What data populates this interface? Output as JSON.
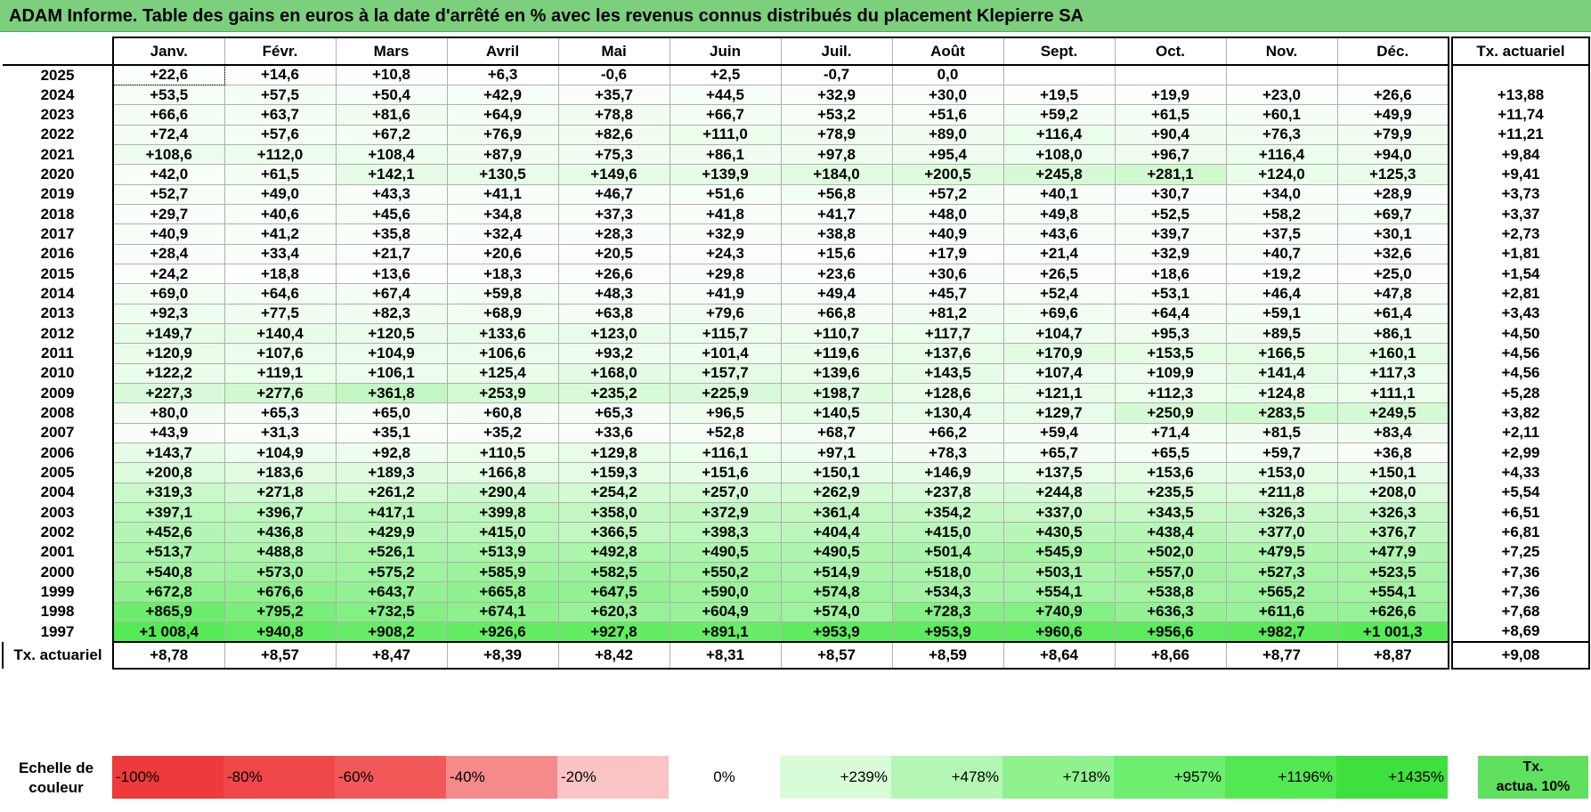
{
  "title": "ADAM Informe. Table des gains en euros à la date d'arrêté en % avec les revenus connus distribués du placement Klepierre SA",
  "months": [
    "Janv.",
    "Févr.",
    "Mars",
    "Avril",
    "Mai",
    "Juin",
    "Juil.",
    "Août",
    "Sept.",
    "Oct.",
    "Nov.",
    "Déc."
  ],
  "annual_header": "Tx. actuariel",
  "rows": [
    {
      "year": "2025",
      "values": [
        "+22,6",
        "+14,6",
        "+10,8",
        "+6,3",
        "-0,6",
        "+2,5",
        "-0,7",
        "0,0",
        "",
        "",
        "",
        ""
      ],
      "rate": ""
    },
    {
      "year": "2024",
      "values": [
        "+53,5",
        "+57,5",
        "+50,4",
        "+42,9",
        "+35,7",
        "+44,5",
        "+32,9",
        "+30,0",
        "+19,5",
        "+19,9",
        "+23,0",
        "+26,6"
      ],
      "rate": "+13,88"
    },
    {
      "year": "2023",
      "values": [
        "+66,6",
        "+63,7",
        "+81,6",
        "+64,9",
        "+78,8",
        "+66,7",
        "+53,2",
        "+51,6",
        "+59,2",
        "+61,5",
        "+60,1",
        "+49,9"
      ],
      "rate": "+11,74"
    },
    {
      "year": "2022",
      "values": [
        "+72,4",
        "+57,6",
        "+67,2",
        "+76,9",
        "+82,6",
        "+111,0",
        "+78,9",
        "+89,0",
        "+116,4",
        "+90,4",
        "+76,3",
        "+79,9"
      ],
      "rate": "+11,21"
    },
    {
      "year": "2021",
      "values": [
        "+108,6",
        "+112,0",
        "+108,4",
        "+87,9",
        "+75,3",
        "+86,1",
        "+97,8",
        "+95,4",
        "+108,0",
        "+96,7",
        "+116,4",
        "+94,0"
      ],
      "rate": "+9,84"
    },
    {
      "year": "2020",
      "values": [
        "+42,0",
        "+61,5",
        "+142,1",
        "+130,5",
        "+149,6",
        "+139,9",
        "+184,0",
        "+200,5",
        "+245,8",
        "+281,1",
        "+124,0",
        "+125,3"
      ],
      "rate": "+9,41"
    },
    {
      "year": "2019",
      "values": [
        "+52,7",
        "+49,0",
        "+43,3",
        "+41,1",
        "+46,7",
        "+51,6",
        "+56,8",
        "+57,2",
        "+40,1",
        "+30,7",
        "+34,0",
        "+28,9"
      ],
      "rate": "+3,73"
    },
    {
      "year": "2018",
      "values": [
        "+29,7",
        "+40,6",
        "+45,6",
        "+34,8",
        "+37,3",
        "+41,8",
        "+41,7",
        "+48,0",
        "+49,8",
        "+52,5",
        "+58,2",
        "+69,7"
      ],
      "rate": "+3,37"
    },
    {
      "year": "2017",
      "values": [
        "+40,9",
        "+41,2",
        "+35,8",
        "+32,4",
        "+28,3",
        "+32,9",
        "+38,8",
        "+40,9",
        "+43,6",
        "+39,7",
        "+37,5",
        "+30,1"
      ],
      "rate": "+2,73"
    },
    {
      "year": "2016",
      "values": [
        "+28,4",
        "+33,4",
        "+21,7",
        "+20,6",
        "+20,5",
        "+24,3",
        "+15,6",
        "+17,9",
        "+21,4",
        "+32,9",
        "+40,7",
        "+32,6"
      ],
      "rate": "+1,81"
    },
    {
      "year": "2015",
      "values": [
        "+24,2",
        "+18,8",
        "+13,6",
        "+18,3",
        "+26,6",
        "+29,8",
        "+23,6",
        "+30,6",
        "+26,5",
        "+18,6",
        "+19,2",
        "+25,0"
      ],
      "rate": "+1,54"
    },
    {
      "year": "2014",
      "values": [
        "+69,0",
        "+64,6",
        "+67,4",
        "+59,8",
        "+48,3",
        "+41,9",
        "+49,4",
        "+45,7",
        "+52,4",
        "+53,1",
        "+46,4",
        "+47,8"
      ],
      "rate": "+2,81"
    },
    {
      "year": "2013",
      "values": [
        "+92,3",
        "+77,5",
        "+82,3",
        "+68,9",
        "+63,8",
        "+79,6",
        "+66,8",
        "+81,2",
        "+69,6",
        "+64,4",
        "+59,1",
        "+61,4"
      ],
      "rate": "+3,43"
    },
    {
      "year": "2012",
      "values": [
        "+149,7",
        "+140,4",
        "+120,5",
        "+133,6",
        "+123,0",
        "+115,7",
        "+110,7",
        "+117,7",
        "+104,7",
        "+95,3",
        "+89,5",
        "+86,1"
      ],
      "rate": "+4,50"
    },
    {
      "year": "2011",
      "values": [
        "+120,9",
        "+107,6",
        "+104,9",
        "+106,6",
        "+93,2",
        "+101,4",
        "+119,6",
        "+137,6",
        "+170,9",
        "+153,5",
        "+166,5",
        "+160,1"
      ],
      "rate": "+4,56"
    },
    {
      "year": "2010",
      "values": [
        "+122,2",
        "+119,1",
        "+106,1",
        "+125,4",
        "+168,0",
        "+157,7",
        "+139,6",
        "+143,5",
        "+107,4",
        "+109,9",
        "+141,4",
        "+117,3"
      ],
      "rate": "+4,56"
    },
    {
      "year": "2009",
      "values": [
        "+227,3",
        "+277,6",
        "+361,8",
        "+253,9",
        "+235,2",
        "+225,9",
        "+198,7",
        "+128,6",
        "+121,1",
        "+112,3",
        "+124,8",
        "+111,1"
      ],
      "rate": "+5,28"
    },
    {
      "year": "2008",
      "values": [
        "+80,0",
        "+65,3",
        "+65,0",
        "+60,8",
        "+65,3",
        "+96,5",
        "+140,5",
        "+130,4",
        "+129,7",
        "+250,9",
        "+283,5",
        "+249,5"
      ],
      "rate": "+3,82"
    },
    {
      "year": "2007",
      "values": [
        "+43,9",
        "+31,3",
        "+35,1",
        "+35,2",
        "+33,6",
        "+52,8",
        "+68,7",
        "+66,2",
        "+59,4",
        "+71,4",
        "+81,5",
        "+83,4"
      ],
      "rate": "+2,11"
    },
    {
      "year": "2006",
      "values": [
        "+143,7",
        "+104,9",
        "+92,8",
        "+110,5",
        "+129,8",
        "+116,1",
        "+97,1",
        "+78,3",
        "+65,7",
        "+65,5",
        "+59,7",
        "+36,8"
      ],
      "rate": "+2,99"
    },
    {
      "year": "2005",
      "values": [
        "+200,8",
        "+183,6",
        "+189,3",
        "+166,8",
        "+159,3",
        "+151,6",
        "+150,1",
        "+146,9",
        "+137,5",
        "+153,6",
        "+153,0",
        "+150,1"
      ],
      "rate": "+4,33"
    },
    {
      "year": "2004",
      "values": [
        "+319,3",
        "+271,8",
        "+261,2",
        "+290,4",
        "+254,2",
        "+257,0",
        "+262,9",
        "+237,8",
        "+244,8",
        "+235,5",
        "+211,8",
        "+208,0"
      ],
      "rate": "+5,54"
    },
    {
      "year": "2003",
      "values": [
        "+397,1",
        "+396,7",
        "+417,1",
        "+399,8",
        "+358,0",
        "+372,9",
        "+361,4",
        "+354,2",
        "+337,0",
        "+343,5",
        "+326,3",
        "+326,3"
      ],
      "rate": "+6,51"
    },
    {
      "year": "2002",
      "values": [
        "+452,6",
        "+436,8",
        "+429,9",
        "+415,0",
        "+366,5",
        "+398,3",
        "+404,4",
        "+415,0",
        "+430,5",
        "+438,4",
        "+377,0",
        "+376,7"
      ],
      "rate": "+6,81"
    },
    {
      "year": "2001",
      "values": [
        "+513,7",
        "+488,8",
        "+526,1",
        "+513,9",
        "+492,8",
        "+490,5",
        "+490,5",
        "+501,4",
        "+545,9",
        "+502,0",
        "+479,5",
        "+477,9"
      ],
      "rate": "+7,25"
    },
    {
      "year": "2000",
      "values": [
        "+540,8",
        "+573,0",
        "+575,2",
        "+585,9",
        "+582,5",
        "+550,2",
        "+514,9",
        "+518,0",
        "+503,1",
        "+557,0",
        "+527,3",
        "+523,5"
      ],
      "rate": "+7,36"
    },
    {
      "year": "1999",
      "values": [
        "+672,8",
        "+676,6",
        "+643,7",
        "+665,8",
        "+647,5",
        "+590,0",
        "+574,8",
        "+534,3",
        "+554,1",
        "+538,8",
        "+565,2",
        "+554,1"
      ],
      "rate": "+7,36"
    },
    {
      "year": "1998",
      "values": [
        "+865,9",
        "+795,2",
        "+732,5",
        "+674,1",
        "+620,3",
        "+604,9",
        "+574,0",
        "+728,3",
        "+740,9",
        "+636,3",
        "+611,6",
        "+626,6"
      ],
      "rate": "+7,68"
    },
    {
      "year": "1997",
      "values": [
        "+1 008,4",
        "+940,8",
        "+908,2",
        "+926,6",
        "+927,8",
        "+891,1",
        "+953,9",
        "+953,9",
        "+960,6",
        "+956,6",
        "+982,7",
        "+1 001,3"
      ],
      "rate": "+8,69"
    }
  ],
  "footer": {
    "label": "Tx. actuariel",
    "values": [
      "+8,78",
      "+8,57",
      "+8,47",
      "+8,39",
      "+8,42",
      "+8,31",
      "+8,57",
      "+8,59",
      "+8,64",
      "+8,66",
      "+8,77",
      "+8,87"
    ],
    "rate": "+9,08"
  },
  "scale": {
    "label_line1": "Echelle de",
    "label_line2": "couleur",
    "items": [
      {
        "label": "-100%",
        "color": "#ee3a3a",
        "kind": "neg"
      },
      {
        "label": "-80%",
        "color": "#f04848",
        "kind": "neg"
      },
      {
        "label": "-60%",
        "color": "#f25858",
        "kind": "neg"
      },
      {
        "label": "-40%",
        "color": "#f58a8a",
        "kind": "neg"
      },
      {
        "label": "-20%",
        "color": "#fbc4c4",
        "kind": "neg"
      },
      {
        "label": "0%",
        "color": "#ffffff",
        "kind": "zero"
      },
      {
        "label": "+239%",
        "color": "#d8fcd8",
        "kind": "pos"
      },
      {
        "label": "+478%",
        "color": "#b4f7b4",
        "kind": "pos"
      },
      {
        "label": "+718%",
        "color": "#8ff28f",
        "kind": "pos"
      },
      {
        "label": "+957%",
        "color": "#6eee6e",
        "kind": "pos"
      },
      {
        "label": "+1196%",
        "color": "#52e852",
        "kind": "pos"
      },
      {
        "label": "+1435%",
        "color": "#3ee03e",
        "kind": "pos"
      }
    ],
    "act_line1": "Tx.",
    "act_line2": "actua. 10%",
    "act_color": "#5fe05f"
  }
}
